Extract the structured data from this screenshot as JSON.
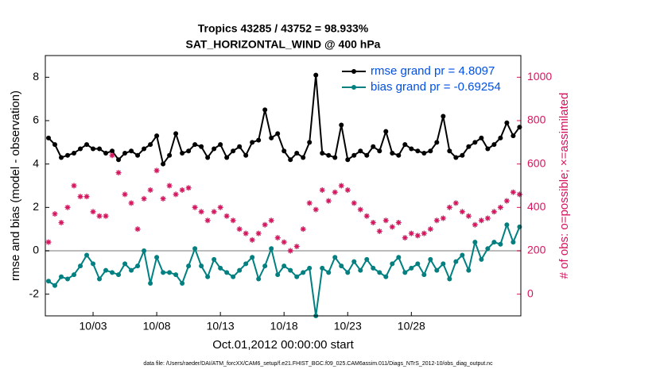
{
  "chart_data": {
    "type": "line",
    "title": "Tropics 43285 / 43752 = 98.933%",
    "subtitle": "SAT_HORIZONTAL_WIND @ 400 hPa",
    "x_label": "Oct.01,2012 00:00:00 start",
    "y_label": "rmse and bias (model - observation)",
    "y2_label": "# of obs: o=possible; ×=assimilated",
    "footnote": "data file: /Users/raeder/DAI/ATM_forcXX/CAM6_setup/f.e21.FHIST_BGC.f09_025.CAM6assim.011/Diags_NTrS_2012-10/obs_diag_output.nc",
    "legend": "northeast",
    "x": [
      -1.5,
      -1,
      -0.5,
      0,
      0.5,
      1,
      1.5,
      2,
      2.5,
      3,
      3.5,
      4,
      4.5,
      5,
      5.5,
      6,
      6.5,
      7,
      7.5,
      8,
      8.5,
      9,
      9.5,
      10,
      10.5,
      11,
      11.5,
      12,
      12.5,
      13,
      13.5,
      14,
      14.5,
      15,
      15.5,
      16,
      16.5,
      17,
      17.5,
      18,
      18.5,
      19,
      19.5,
      20,
      20.5,
      21,
      21.5,
      22,
      22.5,
      23,
      23.5,
      24,
      24.5,
      25,
      25.5,
      26,
      26.5,
      27,
      27.5,
      28,
      28.5,
      29,
      29.5,
      30,
      30.5,
      31,
      31.5,
      32,
      32.5,
      33,
      33.5,
      34,
      34.5,
      35,
      35.5
    ],
    "xlim": [
      -1.75,
      35.6
    ],
    "xticks": [
      {
        "value": 2,
        "label": "10/03"
      },
      {
        "value": 7,
        "label": "10/08"
      },
      {
        "value": 12,
        "label": "10/13"
      },
      {
        "value": 17,
        "label": "10/18"
      },
      {
        "value": 22,
        "label": "10/23"
      },
      {
        "value": 27,
        "label": "10/28"
      }
    ],
    "ylim": [
      -3,
      9
    ],
    "yticks": [
      -2,
      0,
      2,
      4,
      6,
      8
    ],
    "y2lim": [
      -100,
      1100
    ],
    "y2ticks": [
      0,
      200,
      400,
      600,
      800,
      1000
    ],
    "series": [
      {
        "name": "rmse grand pr = 4.8097",
        "color": "#000000",
        "values": [
          5.2,
          4.9,
          4.3,
          4.4,
          4.5,
          4.7,
          4.9,
          4.7,
          4.7,
          4.5,
          4.6,
          4.2,
          4.5,
          4.6,
          4.4,
          4.7,
          4.9,
          5.3,
          4.0,
          4.4,
          5.4,
          4.5,
          4.6,
          4.9,
          4.8,
          4.3,
          4.7,
          4.9,
          4.3,
          4.6,
          4.8,
          4.4,
          5.0,
          5.1,
          6.5,
          5.2,
          5.4,
          4.6,
          4.2,
          4.5,
          4.3,
          5.0,
          8.1,
          4.5,
          4.4,
          4.3,
          5.8,
          4.2,
          4.4,
          4.6,
          4.4,
          4.8,
          4.6,
          5.5,
          4.5,
          4.4,
          4.9,
          4.7,
          4.6,
          4.5,
          4.6,
          5.0,
          6.2,
          4.6,
          4.3,
          4.4,
          4.8,
          5.0,
          5.2,
          4.7,
          4.9,
          5.2,
          5.9,
          5.3,
          5.7
        ]
      },
      {
        "name": "bias grand pr = -0.69254",
        "color": "#008080",
        "values": [
          -1.4,
          -1.6,
          -1.2,
          -1.3,
          -1.1,
          -0.7,
          -0.2,
          -0.6,
          -1.3,
          -0.9,
          -1.0,
          -1.1,
          -0.6,
          -0.9,
          -0.7,
          0.0,
          -1.5,
          -0.3,
          -1.0,
          -1.0,
          -1.1,
          -1.5,
          -0.7,
          0.1,
          -0.7,
          -1.2,
          -0.4,
          -0.8,
          -1.0,
          -1.2,
          -0.9,
          -0.6,
          -0.3,
          -1.3,
          -0.7,
          0.1,
          -1.1,
          -0.7,
          -0.9,
          -1.2,
          -1.0,
          -0.8,
          -3.0,
          -0.8,
          -1.0,
          -0.3,
          -0.7,
          -1.0,
          -0.5,
          -0.9,
          -0.4,
          -0.8,
          -1.0,
          -1.2,
          -0.6,
          -0.3,
          -1.0,
          -0.8,
          -0.6,
          -1.1,
          -0.4,
          -0.9,
          -0.6,
          -1.3,
          -0.5,
          -0.2,
          -0.9,
          0.4,
          -0.4,
          0.1,
          0.4,
          0.3,
          1.2,
          0.4,
          1.1
        ]
      },
      {
        "color": "#d6155f",
        "axis": "y2",
        "marker": "star",
        "values": [
          240,
          370,
          330,
          400,
          500,
          450,
          450,
          380,
          360,
          360,
          640,
          560,
          460,
          420,
          300,
          440,
          480,
          570,
          440,
          500,
          460,
          480,
          490,
          400,
          380,
          340,
          380,
          400,
          360,
          340,
          300,
          280,
          250,
          280,
          320,
          340,
          260,
          240,
          200,
          220,
          300,
          420,
          390,
          480,
          430,
          470,
          500,
          480,
          420,
          390,
          360,
          330,
          290,
          340,
          310,
          330,
          260,
          280,
          270,
          280,
          300,
          340,
          350,
          400,
          420,
          380,
          360,
          320,
          340,
          350,
          380,
          400,
          430,
          470,
          460
        ]
      }
    ]
  }
}
